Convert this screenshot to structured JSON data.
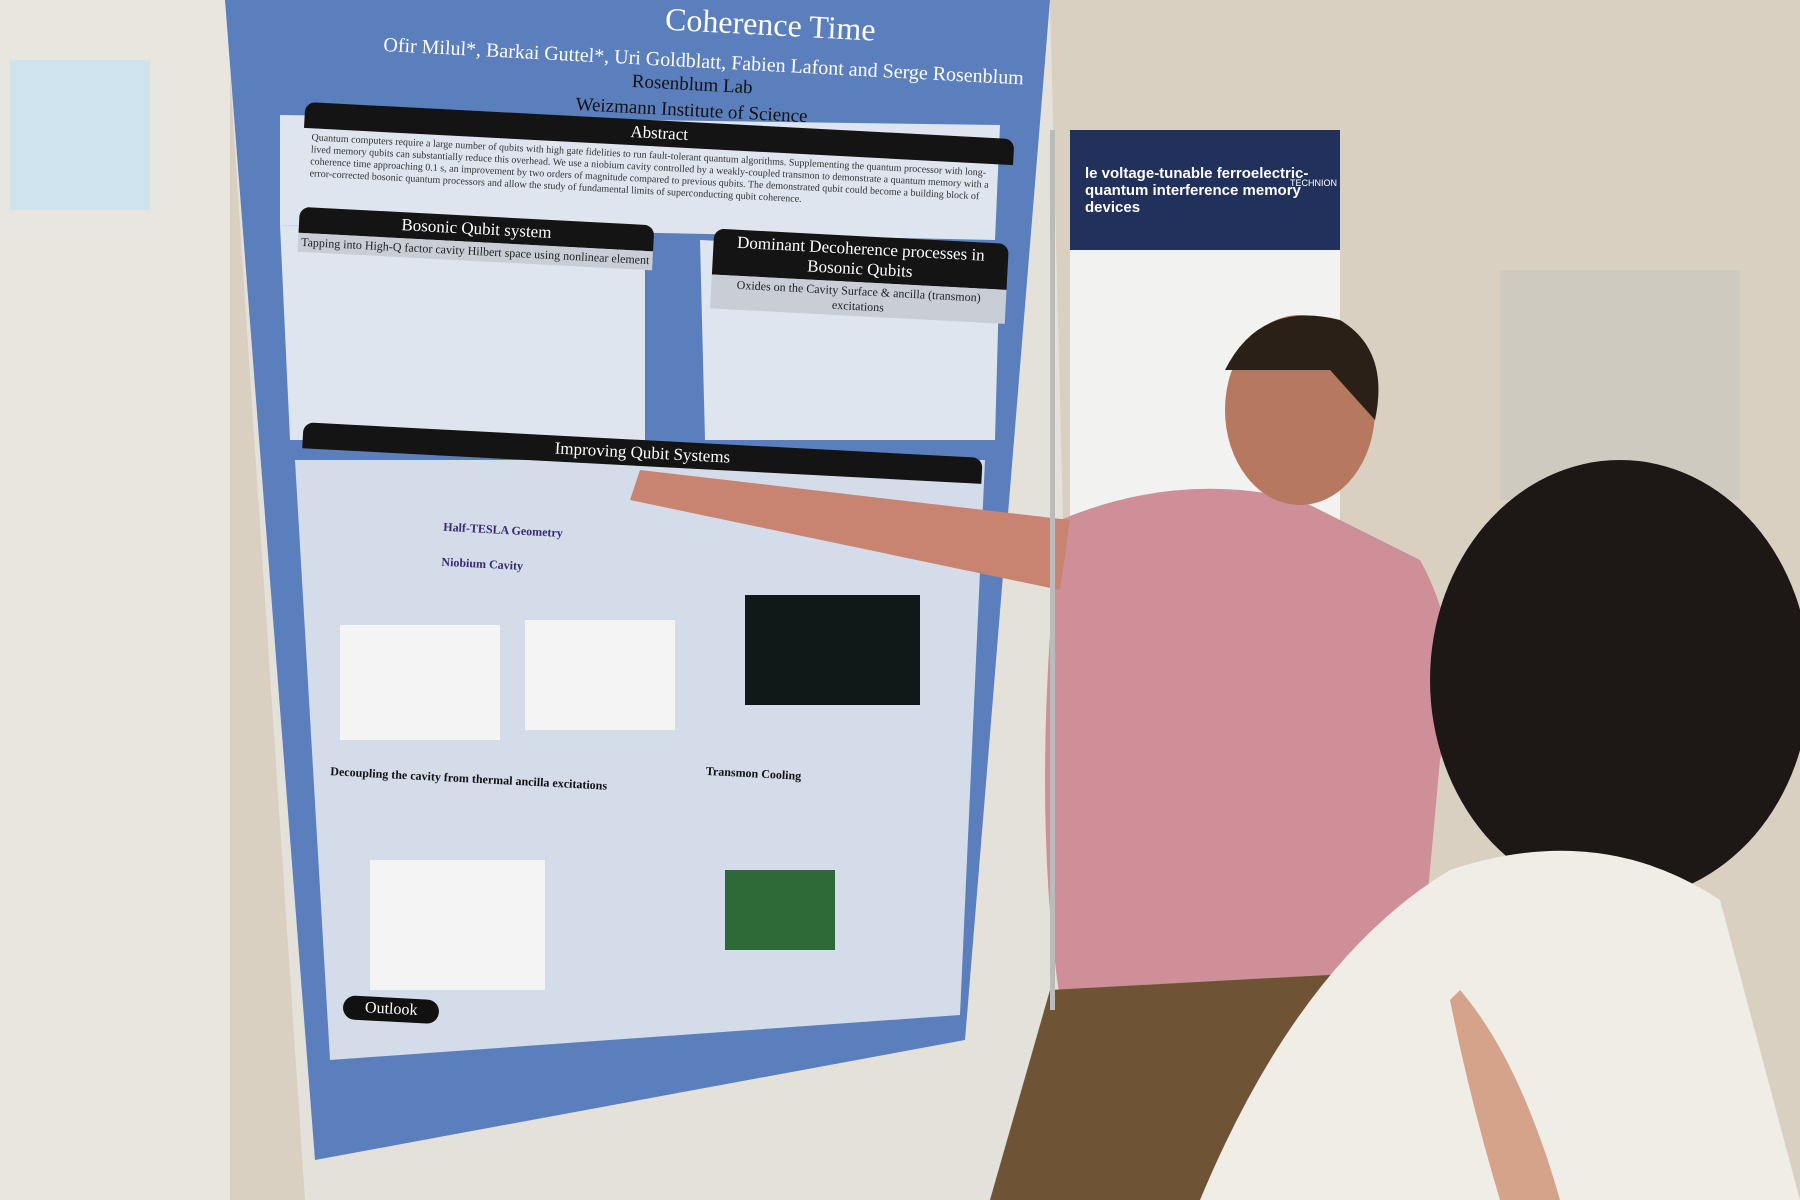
{
  "main_poster": {
    "title": "Coherence Time",
    "authors": "Ofir Milul*, Barkai Guttel*, Uri Goldblatt, Fabien Lafont and Serge Rosenblum",
    "lab": "Rosenblum Lab",
    "institute": "Weizmann Institute of Science",
    "abstract": {
      "heading": "Abstract",
      "text": "Quantum computers require a large number of qubits with high gate fidelities to run fault-tolerant quantum algorithms. Supplementing the quantum processor with long-lived memory qubits can substantially reduce this overhead. We use a niobium cavity controlled by a weakly-coupled transmon to demonstrate a quantum memory with a coherence time approaching 0.1 s, an improvement by two orders of magnitude compared to previous qubits. The demonstrated qubit could become a building block of error-corrected bosonic quantum processors and allow the study of fundamental limits of superconducting qubit coherence."
    },
    "bosonic": {
      "heading": "Bosonic Qubit system",
      "subheading": "Tapping into High-Q factor cavity Hilbert space using nonlinear element"
    },
    "decoherence": {
      "heading": "Dominant Decoherence processes in Bosonic Qubits",
      "subheading": "Oxides on the Cavity Surface & ancilla (transmon) excitations"
    },
    "improving": {
      "heading": "Improving Qubit Systems",
      "items": [
        "Half-TESLA Geometry",
        "Niobium Cavity",
        "Decoupling the cavity from thermal ancilla excitations",
        "Transmon Cooling"
      ]
    },
    "outlook": "Outlook"
  },
  "right_poster": {
    "title": "le voltage-tunable ferroelectric-quantum interference memory devices",
    "logo": "TECHNION"
  }
}
